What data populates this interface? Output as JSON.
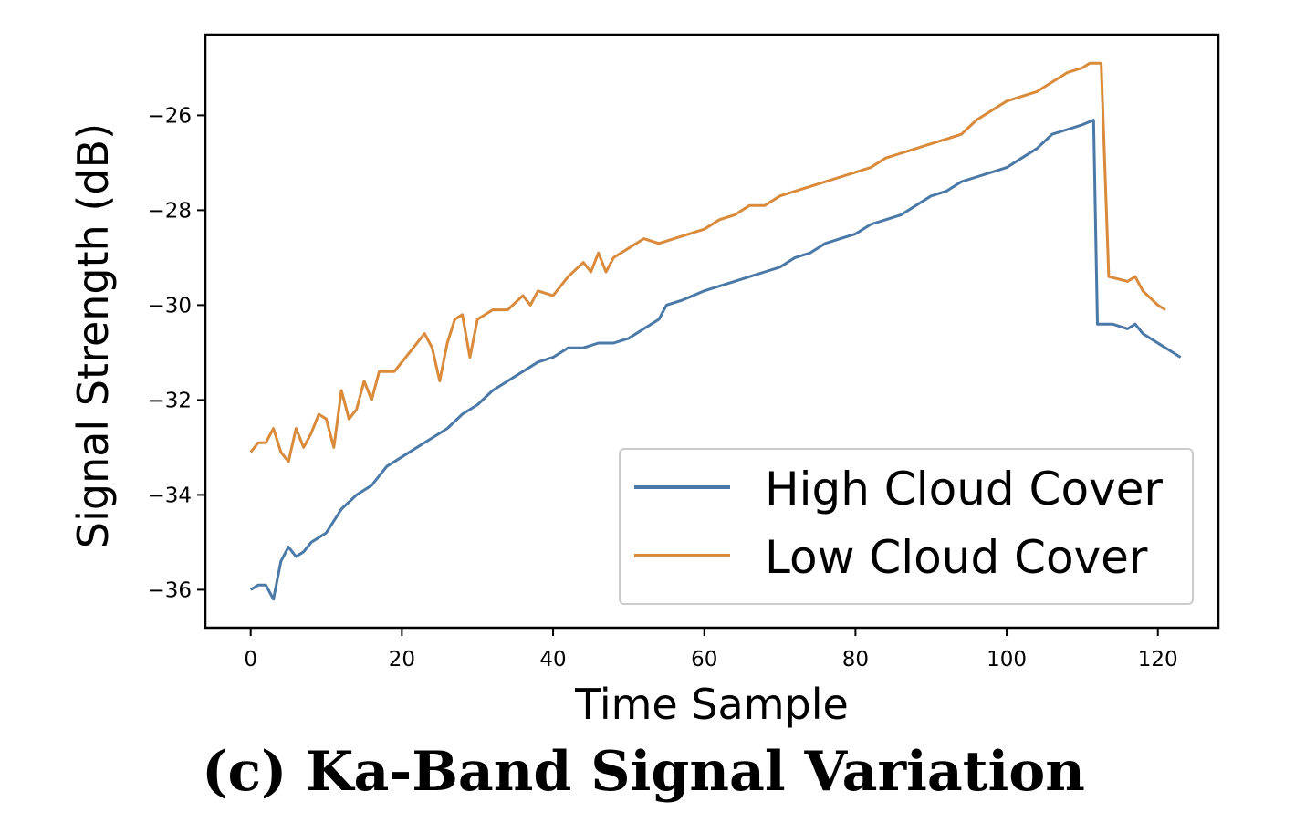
{
  "caption": "(c) Ka-Band Signal Variation",
  "colors": {
    "high": "#4a79a8",
    "low": "#d98a3a"
  },
  "chart_data": {
    "type": "line",
    "title": "",
    "xlabel": "Time Sample",
    "ylabel": "Signal Strength (dB)",
    "xlim": [
      -6,
      128
    ],
    "ylim": [
      -36.8,
      -24.3
    ],
    "xticks": [
      0,
      20,
      40,
      60,
      80,
      100,
      120
    ],
    "yticks": [
      -36,
      -34,
      -32,
      -30,
      -28,
      -26
    ],
    "xtick_labels": [
      "0",
      "20",
      "40",
      "60",
      "80",
      "100",
      "120"
    ],
    "ytick_labels": [
      "−36",
      "−34",
      "−32",
      "−30",
      "−28",
      "−26"
    ],
    "grid": false,
    "legend_position": "lower-right",
    "series": [
      {
        "name": "High Cloud Cover",
        "points": [
          [
            0,
            -36.0
          ],
          [
            1,
            -35.9
          ],
          [
            2,
            -35.9
          ],
          [
            3,
            -36.2
          ],
          [
            4,
            -35.4
          ],
          [
            5,
            -35.1
          ],
          [
            6,
            -35.3
          ],
          [
            7,
            -35.2
          ],
          [
            8,
            -35.0
          ],
          [
            9,
            -34.9
          ],
          [
            10,
            -34.8
          ],
          [
            12,
            -34.3
          ],
          [
            14,
            -34.0
          ],
          [
            16,
            -33.8
          ],
          [
            18,
            -33.4
          ],
          [
            20,
            -33.2
          ],
          [
            22,
            -33.0
          ],
          [
            24,
            -32.8
          ],
          [
            26,
            -32.6
          ],
          [
            28,
            -32.3
          ],
          [
            30,
            -32.1
          ],
          [
            32,
            -31.8
          ],
          [
            34,
            -31.6
          ],
          [
            36,
            -31.4
          ],
          [
            38,
            -31.2
          ],
          [
            40,
            -31.1
          ],
          [
            42,
            -30.9
          ],
          [
            44,
            -30.9
          ],
          [
            46,
            -30.8
          ],
          [
            48,
            -30.8
          ],
          [
            50,
            -30.7
          ],
          [
            52,
            -30.5
          ],
          [
            54,
            -30.3
          ],
          [
            55,
            -30.0
          ],
          [
            57,
            -29.9
          ],
          [
            60,
            -29.7
          ],
          [
            62,
            -29.6
          ],
          [
            64,
            -29.5
          ],
          [
            66,
            -29.4
          ],
          [
            68,
            -29.3
          ],
          [
            70,
            -29.2
          ],
          [
            72,
            -29.0
          ],
          [
            74,
            -28.9
          ],
          [
            76,
            -28.7
          ],
          [
            78,
            -28.6
          ],
          [
            80,
            -28.5
          ],
          [
            82,
            -28.3
          ],
          [
            84,
            -28.2
          ],
          [
            86,
            -28.1
          ],
          [
            88,
            -27.9
          ],
          [
            90,
            -27.7
          ],
          [
            92,
            -27.6
          ],
          [
            94,
            -27.4
          ],
          [
            96,
            -27.3
          ],
          [
            98,
            -27.2
          ],
          [
            100,
            -27.1
          ],
          [
            102,
            -26.9
          ],
          [
            104,
            -26.7
          ],
          [
            106,
            -26.4
          ],
          [
            108,
            -26.3
          ],
          [
            110,
            -26.2
          ],
          [
            111.5,
            -26.1
          ],
          [
            112,
            -30.4
          ],
          [
            114,
            -30.4
          ],
          [
            116,
            -30.5
          ],
          [
            117,
            -30.4
          ],
          [
            118,
            -30.6
          ],
          [
            120,
            -30.8
          ],
          [
            122,
            -31.0
          ],
          [
            123,
            -31.1
          ]
        ]
      },
      {
        "name": "Low Cloud Cover",
        "points": [
          [
            0,
            -33.1
          ],
          [
            1,
            -32.9
          ],
          [
            2,
            -32.9
          ],
          [
            3,
            -32.6
          ],
          [
            4,
            -33.1
          ],
          [
            5,
            -33.3
          ],
          [
            6,
            -32.6
          ],
          [
            7,
            -33.0
          ],
          [
            8,
            -32.7
          ],
          [
            9,
            -32.3
          ],
          [
            10,
            -32.4
          ],
          [
            11,
            -33.0
          ],
          [
            12,
            -31.8
          ],
          [
            13,
            -32.4
          ],
          [
            14,
            -32.2
          ],
          [
            15,
            -31.6
          ],
          [
            16,
            -32.0
          ],
          [
            17,
            -31.4
          ],
          [
            19,
            -31.4
          ],
          [
            21,
            -31.0
          ],
          [
            23,
            -30.6
          ],
          [
            24,
            -30.9
          ],
          [
            25,
            -31.6
          ],
          [
            26,
            -30.8
          ],
          [
            27,
            -30.3
          ],
          [
            28,
            -30.2
          ],
          [
            29,
            -31.1
          ],
          [
            30,
            -30.3
          ],
          [
            32,
            -30.1
          ],
          [
            34,
            -30.1
          ],
          [
            36,
            -29.8
          ],
          [
            37,
            -30.0
          ],
          [
            38,
            -29.7
          ],
          [
            40,
            -29.8
          ],
          [
            42,
            -29.4
          ],
          [
            44,
            -29.1
          ],
          [
            45,
            -29.3
          ],
          [
            46,
            -28.9
          ],
          [
            47,
            -29.3
          ],
          [
            48,
            -29.0
          ],
          [
            50,
            -28.8
          ],
          [
            52,
            -28.6
          ],
          [
            54,
            -28.7
          ],
          [
            56,
            -28.6
          ],
          [
            58,
            -28.5
          ],
          [
            60,
            -28.4
          ],
          [
            62,
            -28.2
          ],
          [
            64,
            -28.1
          ],
          [
            66,
            -27.9
          ],
          [
            68,
            -27.9
          ],
          [
            70,
            -27.7
          ],
          [
            72,
            -27.6
          ],
          [
            74,
            -27.5
          ],
          [
            76,
            -27.4
          ],
          [
            78,
            -27.3
          ],
          [
            80,
            -27.2
          ],
          [
            82,
            -27.1
          ],
          [
            84,
            -26.9
          ],
          [
            86,
            -26.8
          ],
          [
            88,
            -26.7
          ],
          [
            90,
            -26.6
          ],
          [
            92,
            -26.5
          ],
          [
            94,
            -26.4
          ],
          [
            96,
            -26.1
          ],
          [
            98,
            -25.9
          ],
          [
            100,
            -25.7
          ],
          [
            102,
            -25.6
          ],
          [
            104,
            -25.5
          ],
          [
            106,
            -25.3
          ],
          [
            108,
            -25.1
          ],
          [
            110,
            -25.0
          ],
          [
            111,
            -24.9
          ],
          [
            112.5,
            -24.9
          ],
          [
            113.5,
            -29.4
          ],
          [
            116,
            -29.5
          ],
          [
            117,
            -29.4
          ],
          [
            118,
            -29.7
          ],
          [
            120,
            -30.0
          ],
          [
            121,
            -30.1
          ]
        ]
      }
    ]
  }
}
